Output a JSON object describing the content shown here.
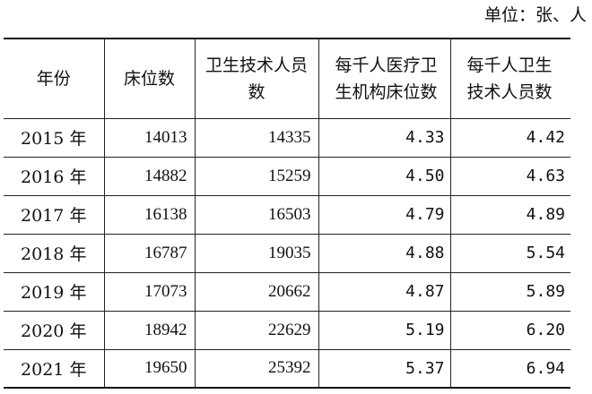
{
  "unit_note": "单位：张、人",
  "table": {
    "headers": {
      "year": "年份",
      "beds": "床位数",
      "tech_staff": "卫生技术人员数",
      "beds_per_thousand": "每千人医疗卫生机构床位数",
      "staff_per_thousand": "每千人卫生技术人员数"
    },
    "rows": [
      {
        "year": "2015 年",
        "beds": "14013",
        "tech_staff": "14335",
        "beds_per_thousand": "4.33",
        "staff_per_thousand": "4.42"
      },
      {
        "year": "2016 年",
        "beds": "14882",
        "tech_staff": "15259",
        "beds_per_thousand": "4.50",
        "staff_per_thousand": "4.63"
      },
      {
        "year": "2017 年",
        "beds": "16138",
        "tech_staff": "16503",
        "beds_per_thousand": "4.79",
        "staff_per_thousand": "4.89"
      },
      {
        "year": "2018 年",
        "beds": "16787",
        "tech_staff": "19035",
        "beds_per_thousand": "4.88",
        "staff_per_thousand": "5.54"
      },
      {
        "year": "2019 年",
        "beds": "17073",
        "tech_staff": "20662",
        "beds_per_thousand": "4.87",
        "staff_per_thousand": "5.89"
      },
      {
        "year": "2020 年",
        "beds": "18942",
        "tech_staff": "22629",
        "beds_per_thousand": "5.19",
        "staff_per_thousand": "6.20"
      },
      {
        "year": "2021 年",
        "beds": "19650",
        "tech_staff": "25392",
        "beds_per_thousand": "5.37",
        "staff_per_thousand": "6.94"
      }
    ]
  }
}
